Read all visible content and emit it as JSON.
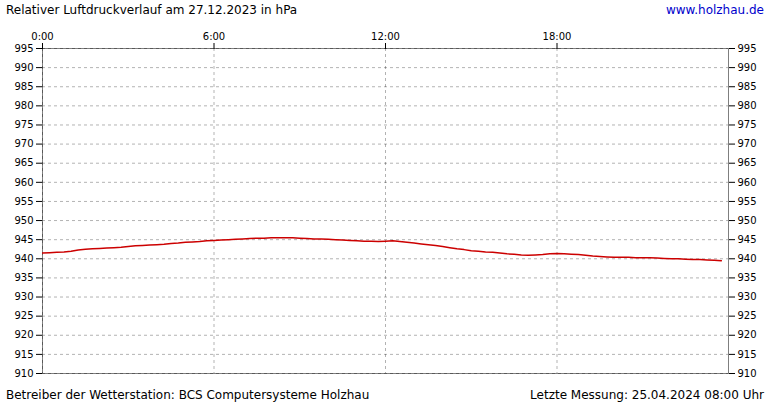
{
  "chart_data": {
    "type": "line",
    "title": "Relativer Luftdruckverlauf am 27.12.2023 in hPa",
    "annotations": [
      {
        "text": "www.holzhau.de",
        "color": "#0000cc"
      },
      {
        "text": "Betreiber der Wetterstation: BCS Computersysteme Holzhau"
      },
      {
        "text": "Letzte Messung: 25.04.2024 08:00 Uhr"
      }
    ],
    "x": [
      0,
      0.25,
      0.5,
      0.75,
      1,
      1.25,
      1.5,
      1.75,
      2,
      2.25,
      2.5,
      2.75,
      3,
      3.25,
      3.5,
      3.75,
      4,
      4.25,
      4.5,
      4.75,
      5,
      5.25,
      5.5,
      5.75,
      6,
      6.25,
      6.5,
      6.75,
      7,
      7.25,
      7.5,
      7.75,
      8,
      8.25,
      8.5,
      8.75,
      9,
      9.25,
      9.5,
      9.75,
      10,
      10.25,
      10.5,
      10.75,
      11,
      11.25,
      11.5,
      11.75,
      12,
      12.25,
      12.5,
      12.75,
      13,
      13.25,
      13.5,
      13.75,
      14,
      14.25,
      14.5,
      14.75,
      15,
      15.25,
      15.5,
      15.75,
      16,
      16.25,
      16.5,
      16.75,
      17,
      17.25,
      17.5,
      17.75,
      18,
      18.25,
      18.5,
      18.75,
      19,
      19.25,
      19.5,
      19.75,
      20,
      20.25,
      20.5,
      20.75,
      21,
      21.25,
      21.5,
      21.75,
      22,
      22.25,
      22.5,
      22.75,
      23,
      23.25,
      23.5,
      23.75
    ],
    "values": [
      941.5,
      941.6,
      941.7,
      941.8,
      942.0,
      942.3,
      942.5,
      942.6,
      942.7,
      942.8,
      942.9,
      943.0,
      943.2,
      943.4,
      943.5,
      943.6,
      943.7,
      943.8,
      944.0,
      944.1,
      944.3,
      944.4,
      944.5,
      944.7,
      944.8,
      944.9,
      945.0,
      945.1,
      945.2,
      945.3,
      945.4,
      945.4,
      945.5,
      945.5,
      945.5,
      945.5,
      945.4,
      945.3,
      945.2,
      945.2,
      945.1,
      945.0,
      944.9,
      944.8,
      944.7,
      944.6,
      944.6,
      944.5,
      944.6,
      944.7,
      944.5,
      944.3,
      944.1,
      943.9,
      943.7,
      943.5,
      943.2,
      942.9,
      942.6,
      942.4,
      942.1,
      942.0,
      941.8,
      941.7,
      941.5,
      941.3,
      941.2,
      941.0,
      940.9,
      941.0,
      941.1,
      941.3,
      941.4,
      941.3,
      941.2,
      941.1,
      940.9,
      940.7,
      940.6,
      940.5,
      940.4,
      940.4,
      940.4,
      940.3,
      940.3,
      940.3,
      940.2,
      940.1,
      940.0,
      940.0,
      939.9,
      939.8,
      939.8,
      939.7,
      939.6,
      939.5
    ],
    "color": "#cc0000",
    "xlim": [
      0,
      24
    ],
    "xticks": [
      {
        "value": 0,
        "label": "0:00"
      },
      {
        "value": 6,
        "label": "6:00"
      },
      {
        "value": 12,
        "label": "12:00"
      },
      {
        "value": 18,
        "label": "18:00"
      }
    ],
    "ylim": [
      910,
      995
    ],
    "yticks": [
      910,
      915,
      920,
      925,
      930,
      935,
      940,
      945,
      950,
      955,
      960,
      965,
      970,
      975,
      980,
      985,
      990,
      995
    ],
    "grid": true
  }
}
